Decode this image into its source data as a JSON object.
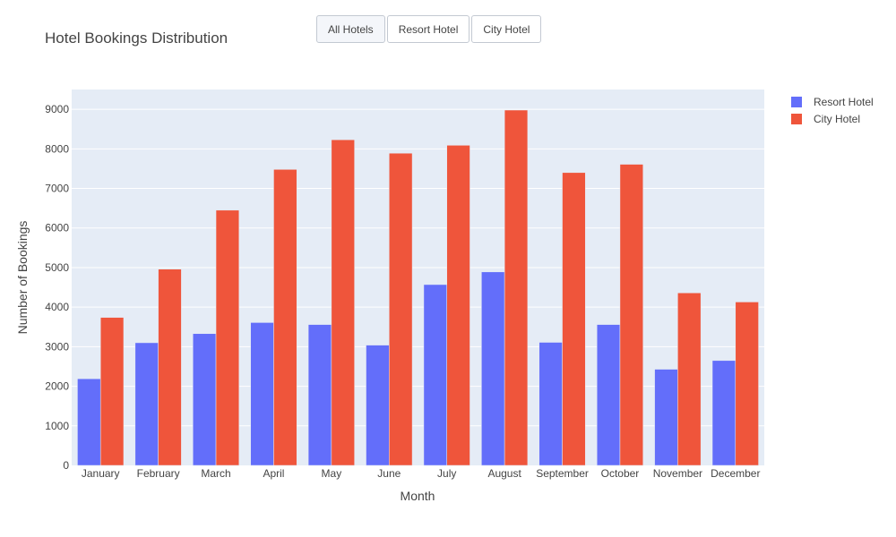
{
  "header": {
    "title": "Hotel Bookings Distribution",
    "buttons": [
      {
        "label": "All Hotels",
        "active": true
      },
      {
        "label": "Resort Hotel",
        "active": false
      },
      {
        "label": "City Hotel",
        "active": false
      }
    ]
  },
  "chart_data": {
    "type": "bar",
    "title": "Hotel Bookings Distribution",
    "xlabel": "Month",
    "ylabel": "Number of Bookings",
    "ylim": [
      0,
      9500
    ],
    "yticks": [
      0,
      1000,
      2000,
      3000,
      4000,
      5000,
      6000,
      7000,
      8000,
      9000
    ],
    "grid": true,
    "legend_position": "top-right",
    "categories": [
      "January",
      "February",
      "March",
      "April",
      "May",
      "June",
      "July",
      "August",
      "September",
      "October",
      "November",
      "December"
    ],
    "series": [
      {
        "name": "Resort Hotel",
        "color": "#636efa",
        "values": [
          2190,
          3100,
          3330,
          3610,
          3560,
          3040,
          4570,
          4890,
          3110,
          3560,
          2430,
          2650
        ]
      },
      {
        "name": "City Hotel",
        "color": "#ef553b",
        "values": [
          3740,
          4960,
          6450,
          7480,
          8230,
          7890,
          8090,
          8980,
          7400,
          7610,
          4360,
          4130
        ]
      }
    ]
  }
}
